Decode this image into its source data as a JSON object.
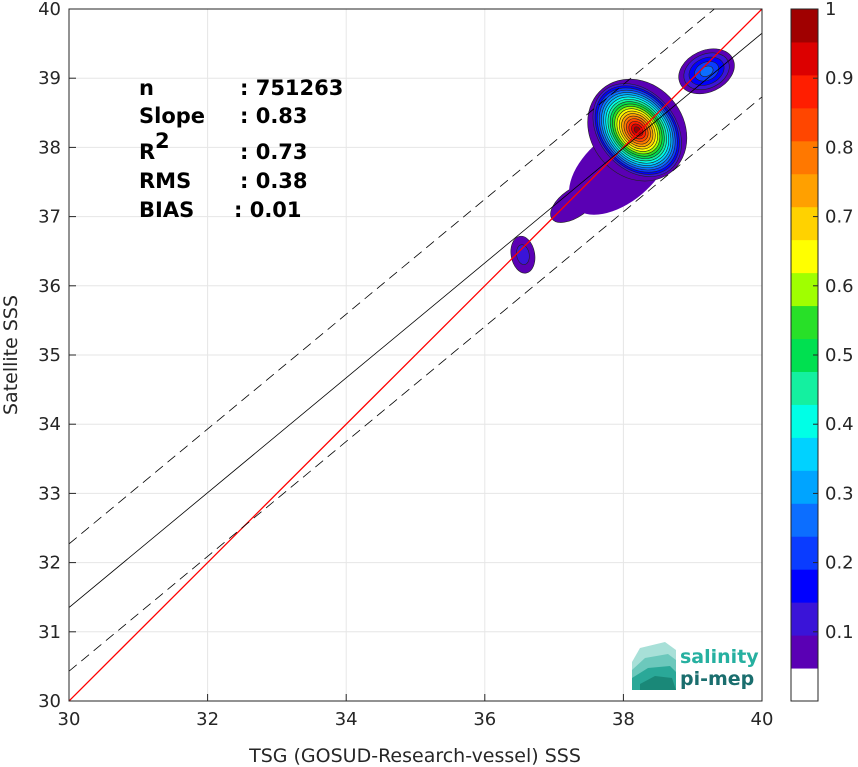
{
  "chart_data": {
    "type": "scatter",
    "xlabel": "TSG (GOSUD-Research-vessel) SSS",
    "ylabel": "Satellite SSS",
    "xlim": [
      30,
      40
    ],
    "ylim": [
      30,
      40
    ],
    "xticks": [
      "30",
      "32",
      "34",
      "36",
      "38",
      "40"
    ],
    "yticks": [
      "30",
      "31",
      "32",
      "33",
      "34",
      "35",
      "36",
      "37",
      "38",
      "39",
      "40"
    ],
    "grid": true,
    "stats": [
      {
        "label": "n",
        "value": ": 751263"
      },
      {
        "label": "Slope",
        "value": ": 0.83"
      },
      {
        "label": "R",
        "sup": "2",
        "value": ": 0.73"
      },
      {
        "label": "RMS",
        "value": ": 0.38"
      },
      {
        "label": "BIAS",
        "value": ": 0.01"
      }
    ],
    "fit_line": {
      "slope": 0.83,
      "intercept": 6.45
    },
    "fit_bounds_offset": 0.92,
    "identity_line": {
      "color": "#ff0000"
    },
    "density_centers": [
      {
        "x": 38.2,
        "y": 38.25,
        "peak": 1.0
      },
      {
        "x": 39.2,
        "y": 39.1,
        "peak": 0.25
      },
      {
        "x": 36.55,
        "y": 36.45,
        "peak": 0.08
      }
    ],
    "colorbar": {
      "range": [
        0,
        1
      ],
      "ticks": [
        "0.1",
        "0.2",
        "0.3",
        "0.4",
        "0.5",
        "0.6",
        "0.7",
        "0.8",
        "0.9",
        "1"
      ],
      "colors": [
        "#ffffff",
        "#5a00b4",
        "#3a14d8",
        "#0000ff",
        "#0a3cff",
        "#0c6eff",
        "#00a4ff",
        "#00d2ff",
        "#00ffe6",
        "#14f0a0",
        "#00e050",
        "#28e028",
        "#a0ff00",
        "#ffff00",
        "#ffd200",
        "#ffa000",
        "#ff7800",
        "#ff4600",
        "#ff1e00",
        "#dc0000",
        "#a00000"
      ]
    }
  },
  "logo": {
    "line1": "salinity",
    "line2": "pi-mep"
  }
}
